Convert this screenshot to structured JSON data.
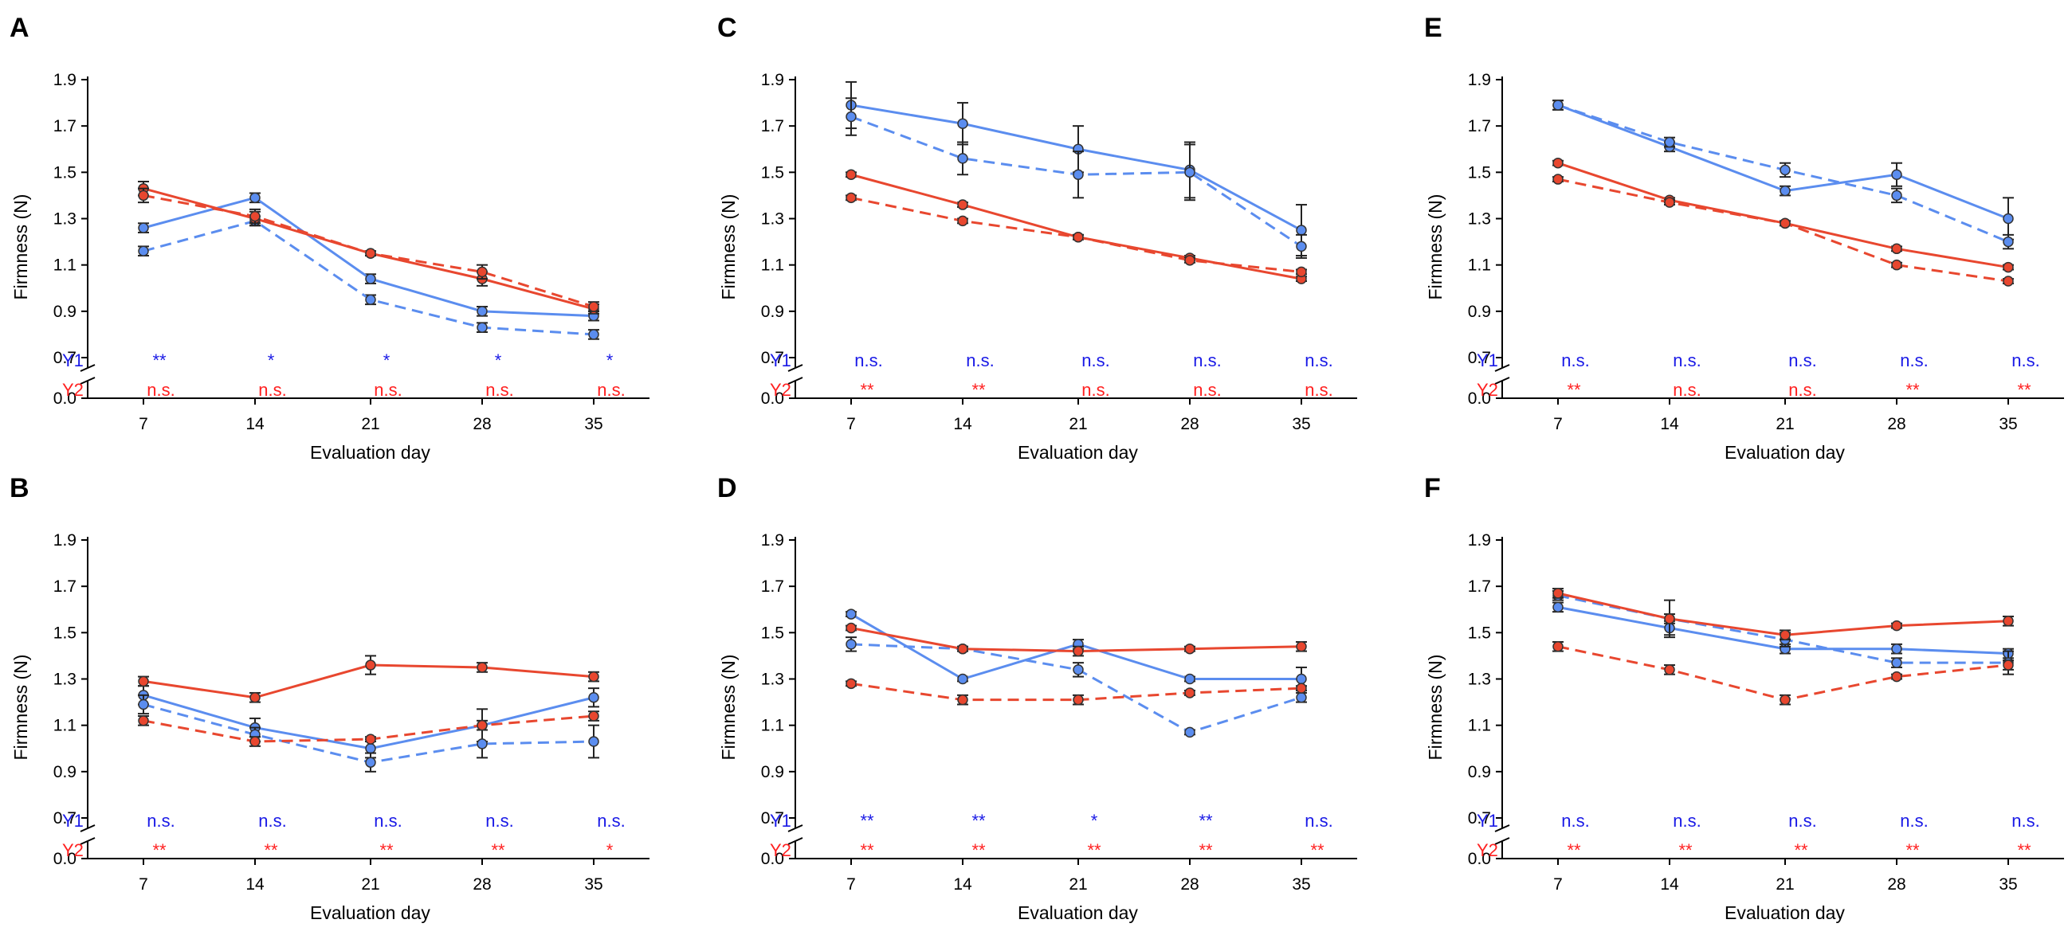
{
  "figure": {
    "xlabel": "Evaluation day",
    "ylabel": "Firmness (N)",
    "ytick_labels": [
      "0.0",
      "0.7",
      "0.9",
      "1.1",
      "1.3",
      "1.5",
      "1.7",
      "1.9"
    ],
    "colors": {
      "Y1": "#5b8def",
      "Y2": "#e8472f",
      "Y1_sig": "#1a1ae6",
      "Y2_sig": "#ff2020"
    }
  },
  "chart_data": [
    {
      "panel": "A",
      "type": "line",
      "xlabel": "Evaluation day",
      "ylabel": "Firmness (N)",
      "categories": [
        7,
        14,
        21,
        28,
        35
      ],
      "ylim": [
        0.0,
        1.9
      ],
      "y_break": [
        0.0,
        0.7
      ],
      "series": [
        {
          "name": "Y1 solid",
          "color": "#5b8def",
          "style": "solid",
          "values": [
            1.26,
            1.39,
            1.04,
            0.9,
            0.88
          ],
          "errors": [
            0.02,
            0.02,
            0.02,
            0.02,
            0.02
          ]
        },
        {
          "name": "Y1 dashed",
          "color": "#5b8def",
          "style": "dashed",
          "values": [
            1.16,
            1.29,
            0.95,
            0.83,
            0.8
          ],
          "errors": [
            0.02,
            0.02,
            0.02,
            0.02,
            0.02
          ]
        },
        {
          "name": "Y2 solid",
          "color": "#e8472f",
          "style": "solid",
          "values": [
            1.43,
            1.3,
            1.15,
            1.04,
            0.91
          ],
          "errors": [
            0.03,
            0.03,
            0.01,
            0.03,
            0.02
          ]
        },
        {
          "name": "Y2 dashed",
          "color": "#e8472f",
          "style": "dashed",
          "values": [
            1.4,
            1.31,
            1.15,
            1.07,
            0.92
          ],
          "errors": [
            0.03,
            0.03,
            0.01,
            0.03,
            0.02
          ]
        }
      ],
      "significance": {
        "Y1": [
          "**",
          "*",
          "*",
          "*",
          "*"
        ],
        "Y2": [
          "n.s.",
          "n.s.",
          "n.s.",
          "n.s.",
          "n.s."
        ]
      }
    },
    {
      "panel": "B",
      "type": "line",
      "xlabel": "Evaluation day",
      "ylabel": "Firmness (N)",
      "categories": [
        7,
        14,
        21,
        28,
        35
      ],
      "ylim": [
        0.0,
        1.9
      ],
      "y_break": [
        0.0,
        0.7
      ],
      "series": [
        {
          "name": "Y1 solid",
          "color": "#5b8def",
          "style": "solid",
          "values": [
            1.23,
            1.09,
            1.0,
            1.1,
            1.22
          ],
          "errors": [
            0.04,
            0.04,
            0.04,
            0.07,
            0.04
          ]
        },
        {
          "name": "Y1 dashed",
          "color": "#5b8def",
          "style": "dashed",
          "values": [
            1.19,
            1.06,
            0.94,
            1.02,
            1.03
          ],
          "errors": [
            0.04,
            0.03,
            0.04,
            0.06,
            0.07
          ]
        },
        {
          "name": "Y2 solid",
          "color": "#e8472f",
          "style": "solid",
          "values": [
            1.29,
            1.22,
            1.36,
            1.35,
            1.31
          ],
          "errors": [
            0.02,
            0.02,
            0.04,
            0.02,
            0.02
          ]
        },
        {
          "name": "Y2 dashed",
          "color": "#e8472f",
          "style": "dashed",
          "values": [
            1.12,
            1.03,
            1.04,
            1.1,
            1.14
          ],
          "errors": [
            0.02,
            0.02,
            0.01,
            0.02,
            0.02
          ]
        }
      ],
      "significance": {
        "Y1": [
          "n.s.",
          "n.s.",
          "n.s.",
          "n.s.",
          "n.s."
        ],
        "Y2": [
          "**",
          "**",
          "**",
          "**",
          "*"
        ]
      }
    },
    {
      "panel": "C",
      "type": "line",
      "xlabel": "Evaluation day",
      "ylabel": "Firmness (N)",
      "categories": [
        7,
        14,
        21,
        28,
        35
      ],
      "ylim": [
        0.0,
        1.9
      ],
      "y_break": [
        0.0,
        0.7
      ],
      "series": [
        {
          "name": "Y1 solid",
          "color": "#5b8def",
          "style": "solid",
          "values": [
            1.79,
            1.71,
            1.6,
            1.51,
            1.25
          ],
          "errors": [
            0.1,
            0.09,
            0.1,
            0.12,
            0.11
          ]
        },
        {
          "name": "Y1 dashed",
          "color": "#5b8def",
          "style": "dashed",
          "values": [
            1.74,
            1.56,
            1.49,
            1.5,
            1.18
          ],
          "errors": [
            0.08,
            0.07,
            0.1,
            0.12,
            0.05
          ]
        },
        {
          "name": "Y2 solid",
          "color": "#e8472f",
          "style": "solid",
          "values": [
            1.49,
            1.36,
            1.22,
            1.13,
            1.04
          ],
          "errors": [
            0.01,
            0.01,
            0.01,
            0.01,
            0.01
          ]
        },
        {
          "name": "Y2 dashed",
          "color": "#e8472f",
          "style": "dashed",
          "values": [
            1.39,
            1.29,
            1.22,
            1.12,
            1.07
          ],
          "errors": [
            0.01,
            0.01,
            0.01,
            0.01,
            0.01
          ]
        }
      ],
      "significance": {
        "Y1": [
          "n.s.",
          "n.s.",
          "n.s.",
          "n.s.",
          "n.s."
        ],
        "Y2": [
          "**",
          "**",
          "n.s.",
          "n.s.",
          "n.s."
        ]
      }
    },
    {
      "panel": "D",
      "type": "line",
      "xlabel": "Evaluation day",
      "ylabel": "Firmness (N)",
      "categories": [
        7,
        14,
        21,
        28,
        35
      ],
      "ylim": [
        0.0,
        1.9
      ],
      "y_break": [
        0.0,
        0.7
      ],
      "series": [
        {
          "name": "Y1 solid",
          "color": "#5b8def",
          "style": "solid",
          "values": [
            1.58,
            1.3,
            1.45,
            1.3,
            1.3
          ],
          "errors": [
            0.01,
            0.01,
            0.02,
            0.01,
            0.05
          ]
        },
        {
          "name": "Y1 dashed",
          "color": "#5b8def",
          "style": "dashed",
          "values": [
            1.45,
            1.43,
            1.34,
            1.07,
            1.22
          ],
          "errors": [
            0.03,
            0.01,
            0.03,
            0.01,
            0.02
          ]
        },
        {
          "name": "Y2 solid",
          "color": "#e8472f",
          "style": "solid",
          "values": [
            1.52,
            1.43,
            1.42,
            1.43,
            1.44
          ],
          "errors": [
            0.01,
            0.01,
            0.02,
            0.01,
            0.02
          ]
        },
        {
          "name": "Y2 dashed",
          "color": "#e8472f",
          "style": "dashed",
          "values": [
            1.28,
            1.21,
            1.21,
            1.24,
            1.26
          ],
          "errors": [
            0.01,
            0.02,
            0.02,
            0.01,
            0.01
          ]
        }
      ],
      "significance": {
        "Y1": [
          "**",
          "**",
          "*",
          "**",
          "n.s."
        ],
        "Y2": [
          "**",
          "**",
          "**",
          "**",
          "**"
        ]
      }
    },
    {
      "panel": "E",
      "type": "line",
      "xlabel": "Evaluation day",
      "ylabel": "Firmness (N)",
      "categories": [
        7,
        14,
        21,
        28,
        35
      ],
      "ylim": [
        0.0,
        1.9
      ],
      "y_break": [
        0.0,
        0.7
      ],
      "series": [
        {
          "name": "Y1 solid",
          "color": "#5b8def",
          "style": "solid",
          "values": [
            1.79,
            1.61,
            1.42,
            1.49,
            1.3
          ],
          "errors": [
            0.02,
            0.02,
            0.02,
            0.05,
            0.09
          ]
        },
        {
          "name": "Y1 dashed",
          "color": "#5b8def",
          "style": "dashed",
          "values": [
            1.79,
            1.63,
            1.51,
            1.4,
            1.2
          ],
          "errors": [
            0.02,
            0.02,
            0.03,
            0.03,
            0.03
          ]
        },
        {
          "name": "Y2 solid",
          "color": "#e8472f",
          "style": "solid",
          "values": [
            1.54,
            1.38,
            1.28,
            1.17,
            1.09
          ],
          "errors": [
            0.01,
            0.01,
            0.01,
            0.01,
            0.01
          ]
        },
        {
          "name": "Y2 dashed",
          "color": "#e8472f",
          "style": "dashed",
          "values": [
            1.47,
            1.37,
            1.28,
            1.1,
            1.03
          ],
          "errors": [
            0.01,
            0.01,
            0.01,
            0.01,
            0.01
          ]
        }
      ],
      "significance": {
        "Y1": [
          "n.s.",
          "n.s.",
          "n.s.",
          "n.s.",
          "n.s."
        ],
        "Y2": [
          "**",
          "n.s.",
          "n.s.",
          "**",
          "**"
        ]
      }
    },
    {
      "panel": "F",
      "type": "line",
      "xlabel": "Evaluation day",
      "ylabel": "Firmness (N)",
      "categories": [
        7,
        14,
        21,
        28,
        35
      ],
      "ylim": [
        0.0,
        1.9
      ],
      "y_break": [
        0.0,
        0.7
      ],
      "series": [
        {
          "name": "Y1 solid",
          "color": "#5b8def",
          "style": "solid",
          "values": [
            1.61,
            1.52,
            1.43,
            1.43,
            1.41
          ],
          "errors": [
            0.02,
            0.03,
            0.02,
            0.02,
            0.02
          ]
        },
        {
          "name": "Y1 dashed",
          "color": "#5b8def",
          "style": "dashed",
          "values": [
            1.66,
            1.56,
            1.47,
            1.37,
            1.37
          ],
          "errors": [
            0.02,
            0.08,
            0.03,
            0.02,
            0.05
          ]
        },
        {
          "name": "Y2 solid",
          "color": "#e8472f",
          "style": "solid",
          "values": [
            1.67,
            1.56,
            1.49,
            1.53,
            1.55
          ],
          "errors": [
            0.02,
            0.02,
            0.02,
            0.01,
            0.02
          ]
        },
        {
          "name": "Y2 dashed",
          "color": "#e8472f",
          "style": "dashed",
          "values": [
            1.44,
            1.34,
            1.21,
            1.31,
            1.36
          ],
          "errors": [
            0.02,
            0.02,
            0.02,
            0.01,
            0.02
          ]
        }
      ],
      "significance": {
        "Y1": [
          "n.s.",
          "n.s.",
          "n.s.",
          "n.s.",
          "n.s."
        ],
        "Y2": [
          "**",
          "**",
          "**",
          "**",
          "**"
        ]
      }
    }
  ]
}
